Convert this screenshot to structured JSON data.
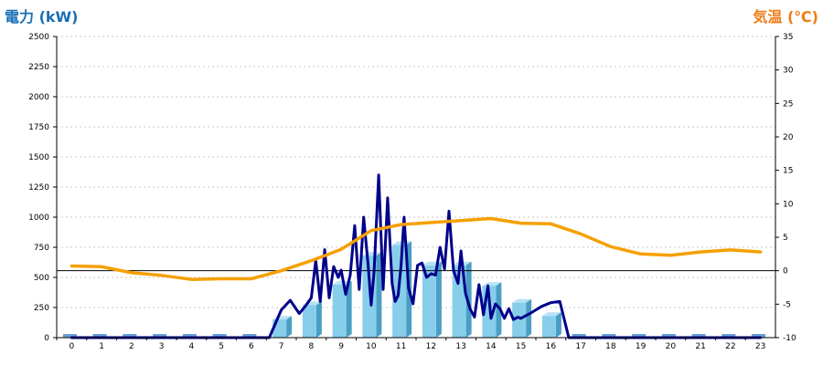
{
  "chart_data": {
    "type": "bar+line",
    "left_title": "電力 (kW)",
    "right_title": "気温 (℃)",
    "left_title_color": "#1a6fb5",
    "right_title_color": "#ee7c16",
    "categories": [
      "0",
      "1",
      "2",
      "3",
      "4",
      "5",
      "6",
      "7",
      "8",
      "9",
      "10",
      "11",
      "12",
      "13",
      "14",
      "15",
      "16",
      "17",
      "18",
      "19",
      "20",
      "21",
      "22",
      "23"
    ],
    "y_left": {
      "min": 0,
      "max": 2500,
      "ticks": [
        "0",
        "250",
        "500",
        "750",
        "1000",
        "1250",
        "1500",
        "1750",
        "2000",
        "2250",
        "2500"
      ]
    },
    "y_right": {
      "min": -10,
      "max": 35,
      "ticks": [
        "-10",
        "-5",
        "0",
        "5",
        "10",
        "15",
        "20",
        "25",
        "30",
        "35"
      ]
    },
    "grid": true,
    "series": [
      {
        "kind": "bar",
        "axis": "left",
        "color": "#87ceeb",
        "values": [
          0,
          0,
          0,
          0,
          0,
          0,
          0,
          150,
          270,
          440,
          680,
          770,
          600,
          600,
          430,
          290,
          180,
          0,
          0,
          0,
          0,
          0,
          0,
          0
        ]
      },
      {
        "kind": "line",
        "axis": "left",
        "color": "#00008b",
        "x": [
          0,
          1,
          2,
          3,
          4,
          5,
          6,
          6.6,
          7,
          7.3,
          7.6,
          7.8,
          8,
          8.15,
          8.3,
          8.45,
          8.6,
          8.75,
          8.9,
          9,
          9.15,
          9.3,
          9.45,
          9.6,
          9.75,
          9.9,
          10,
          10.1,
          10.25,
          10.4,
          10.55,
          10.7,
          10.8,
          10.9,
          11,
          11.1,
          11.25,
          11.4,
          11.55,
          11.7,
          11.85,
          12,
          12.15,
          12.3,
          12.45,
          12.6,
          12.75,
          12.9,
          13,
          13.15,
          13.3,
          13.45,
          13.6,
          13.75,
          13.9,
          14,
          14.15,
          14.3,
          14.45,
          14.6,
          14.75,
          14.9,
          15,
          15.15,
          15.3,
          15.5,
          15.7,
          16,
          16.3,
          16.6,
          17,
          18,
          19,
          20,
          21,
          22,
          23
        ],
        "y": [
          0,
          0,
          0,
          0,
          0,
          0,
          0,
          0,
          230,
          310,
          200,
          260,
          330,
          640,
          300,
          730,
          330,
          590,
          500,
          560,
          360,
          520,
          930,
          400,
          1000,
          600,
          270,
          550,
          1350,
          400,
          1160,
          450,
          300,
          350,
          600,
          1000,
          410,
          280,
          600,
          620,
          500,
          530,
          520,
          750,
          570,
          1050,
          560,
          450,
          720,
          370,
          240,
          170,
          440,
          190,
          430,
          160,
          280,
          240,
          160,
          240,
          150,
          170,
          160,
          180,
          200,
          230,
          260,
          290,
          300,
          0,
          0,
          0,
          0,
          0,
          0,
          0,
          0
        ]
      },
      {
        "kind": "line",
        "axis": "right",
        "color": "#f5a000",
        "values": [
          0.7,
          0.6,
          -0.3,
          -0.7,
          -1.3,
          -1.2,
          -1.2,
          0,
          1.5,
          3.2,
          6.0,
          6.9,
          7.2,
          7.5,
          7.8,
          7.1,
          7.0,
          5.5,
          3.6,
          2.5,
          2.3,
          2.8,
          3.1,
          2.8
        ]
      }
    ]
  }
}
